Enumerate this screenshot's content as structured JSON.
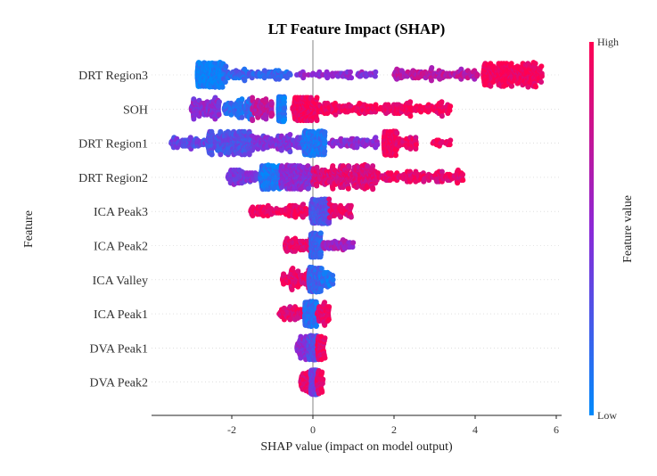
{
  "chart_data": {
    "type": "scatter",
    "subtype": "shap-beeswarm",
    "title": "LT Feature Impact (SHAP)",
    "xlabel": "SHAP value (impact on model output)",
    "ylabel": "Feature",
    "xlim": [
      -3.98,
      6.1
    ],
    "xticks": [
      -2,
      0,
      2,
      4,
      6
    ],
    "xtick_labels": [
      "-2",
      "0",
      "2",
      "4",
      "6"
    ],
    "colorbar": {
      "label": "Feature value",
      "high_label": "High",
      "low_label": "Low",
      "low_color": "#008afb",
      "mid_color": "#8c28d7",
      "high_color": "#ff0052"
    },
    "features": [
      {
        "name": "DRT Region3",
        "segments": [
          [
            -2.85,
            -2.2,
            0.03,
            330
          ],
          [
            -2.2,
            -0.5,
            0.2,
            110
          ],
          [
            -0.4,
            1.6,
            0.5,
            70
          ],
          [
            2.0,
            4.1,
            0.7,
            140
          ],
          [
            4.2,
            5.65,
            0.96,
            330
          ]
        ]
      },
      {
        "name": "SOH",
        "segments": [
          [
            -3.0,
            -2.3,
            0.5,
            120
          ],
          [
            -2.2,
            -1.5,
            0.15,
            110
          ],
          [
            -1.5,
            -1.0,
            0.7,
            90
          ],
          [
            -0.85,
            -0.7,
            0.08,
            200
          ],
          [
            -0.5,
            0.1,
            0.95,
            160
          ],
          [
            0.1,
            3.4,
            0.95,
            260
          ]
        ]
      },
      {
        "name": "DRT Region1",
        "segments": [
          [
            -3.5,
            -2.6,
            0.35,
            70
          ],
          [
            -2.6,
            -1.5,
            0.3,
            260
          ],
          [
            -1.5,
            -0.3,
            0.45,
            140
          ],
          [
            -0.25,
            0.3,
            0.12,
            230
          ],
          [
            0.4,
            1.6,
            0.5,
            80
          ],
          [
            1.75,
            2.05,
            0.95,
            200
          ],
          [
            2.05,
            2.55,
            0.9,
            50
          ],
          [
            2.95,
            3.4,
            0.95,
            20
          ]
        ]
      },
      {
        "name": "DRT Region2",
        "segments": [
          [
            -2.1,
            -1.35,
            0.45,
            90
          ],
          [
            -1.3,
            -0.8,
            0.1,
            160
          ],
          [
            -0.8,
            0.0,
            0.5,
            220
          ],
          [
            0.0,
            1.5,
            0.85,
            300
          ],
          [
            1.5,
            3.7,
            0.9,
            170
          ]
        ]
      },
      {
        "name": "ICA Peak3",
        "segments": [
          [
            -1.55,
            -0.1,
            0.95,
            120
          ],
          [
            -0.05,
            0.4,
            0.3,
            260
          ],
          [
            0.4,
            0.95,
            0.9,
            60
          ]
        ]
      },
      {
        "name": "ICA Peak2",
        "segments": [
          [
            -0.7,
            -0.05,
            0.9,
            80
          ],
          [
            -0.05,
            0.2,
            0.2,
            200
          ],
          [
            0.2,
            1.0,
            0.6,
            60
          ]
        ]
      },
      {
        "name": "ICA Valley",
        "segments": [
          [
            -0.75,
            -0.1,
            0.9,
            90
          ],
          [
            -0.1,
            0.2,
            0.2,
            220
          ],
          [
            0.2,
            0.5,
            0.1,
            40
          ]
        ]
      },
      {
        "name": "ICA Peak1",
        "segments": [
          [
            -0.85,
            -0.2,
            0.9,
            70
          ],
          [
            -0.2,
            0.1,
            0.15,
            230
          ],
          [
            0.1,
            0.4,
            0.9,
            60
          ]
        ]
      },
      {
        "name": "DVA Peak1",
        "segments": [
          [
            -0.4,
            -0.05,
            0.5,
            70
          ],
          [
            -0.1,
            0.1,
            0.3,
            200
          ],
          [
            0.1,
            0.3,
            0.9,
            50
          ]
        ]
      },
      {
        "name": "DVA Peak2",
        "segments": [
          [
            -0.3,
            -0.05,
            0.9,
            50
          ],
          [
            -0.05,
            0.1,
            0.4,
            180
          ],
          [
            0.1,
            0.25,
            0.9,
            40
          ]
        ]
      }
    ]
  }
}
